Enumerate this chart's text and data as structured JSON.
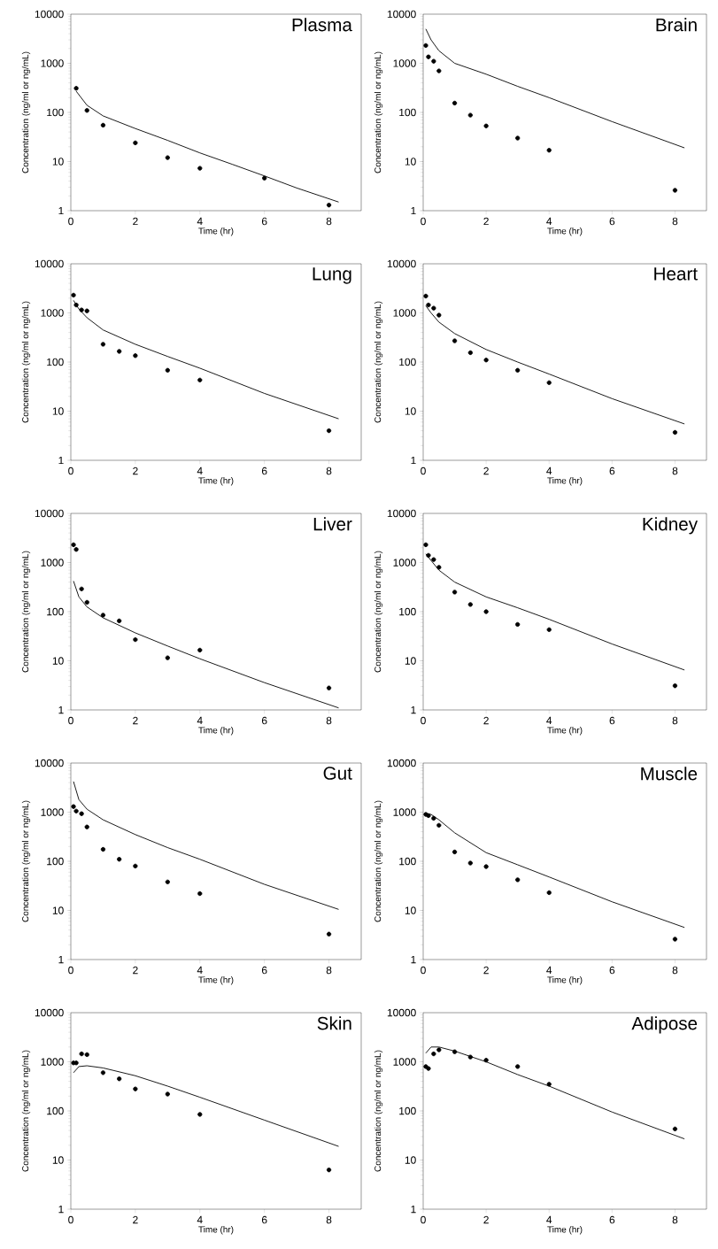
{
  "chart_data": [
    {
      "type": "scatter",
      "title": "Plasma",
      "xlabel": "Time (hr)",
      "ylabel": "Concentration (ng/ml or ng/mL)",
      "log": "y",
      "xlim": [
        0,
        9
      ],
      "ylim": [
        1,
        10000
      ],
      "xticks": [
        0,
        2,
        4,
        6,
        8
      ],
      "yticks": [
        1,
        10,
        100,
        1000,
        10000
      ],
      "series": [
        {
          "marker": "circle",
          "color": "#000000",
          "x": [
            0.167,
            0.5,
            1,
            2,
            3,
            4,
            6,
            8
          ],
          "values": [
            310,
            110,
            55,
            24,
            12,
            7.3,
            4.6,
            1.3
          ]
        },
        {
          "type": "line",
          "color": "#000000",
          "x": [
            0.167,
            0.5,
            1,
            2,
            3,
            4,
            5,
            6,
            7,
            8.3
          ],
          "values": [
            270,
            140,
            85,
            47,
            27,
            15,
            8.8,
            5.1,
            2.9,
            1.5
          ]
        }
      ]
    },
    {
      "type": "scatter",
      "title": "Brain",
      "xlabel": "Time (hr)",
      "ylabel": "Concentration (ng/ml or ng/mL)",
      "log": "y",
      "xlim": [
        0,
        9
      ],
      "ylim": [
        1,
        10000
      ],
      "xticks": [
        0,
        2,
        4,
        6,
        8
      ],
      "yticks": [
        1,
        10,
        100,
        1000,
        10000
      ],
      "series": [
        {
          "marker": "circle",
          "color": "#000000",
          "x": [
            0.083,
            0.167,
            0.333,
            0.5,
            1,
            1.5,
            2,
            3,
            4,
            8
          ],
          "values": [
            2300,
            1350,
            1100,
            700,
            155,
            88,
            53,
            30,
            17,
            2.6
          ]
        },
        {
          "type": "line",
          "color": "#000000",
          "x": [
            0.083,
            0.25,
            0.5,
            1,
            2,
            3,
            4,
            6,
            8.3
          ],
          "values": [
            5000,
            3000,
            1800,
            1000,
            600,
            340,
            200,
            65,
            19
          ]
        }
      ]
    },
    {
      "type": "scatter",
      "title": "Lung",
      "xlabel": "Time (hr)",
      "ylabel": "Concentration (ng/ml or ng/mL)",
      "log": "y",
      "xlim": [
        0,
        9
      ],
      "ylim": [
        1,
        10000
      ],
      "xticks": [
        0,
        2,
        4,
        6,
        8
      ],
      "yticks": [
        1,
        10,
        100,
        1000,
        10000
      ],
      "series": [
        {
          "marker": "circle",
          "color": "#000000",
          "x": [
            0.083,
            0.167,
            0.333,
            0.5,
            1,
            1.5,
            2,
            3,
            4,
            8
          ],
          "values": [
            2300,
            1450,
            1150,
            1100,
            230,
            165,
            135,
            68,
            43,
            4
          ]
        },
        {
          "type": "line",
          "color": "#000000",
          "x": [
            0.083,
            0.25,
            0.5,
            1,
            2,
            3,
            4,
            6,
            8.3
          ],
          "values": [
            1800,
            1200,
            800,
            450,
            230,
            130,
            75,
            23,
            7
          ]
        }
      ]
    },
    {
      "type": "scatter",
      "title": "Heart",
      "xlabel": "Time (hr)",
      "ylabel": "Concentration (ng/ml or ng/mL)",
      "log": "y",
      "xlim": [
        0,
        9
      ],
      "ylim": [
        1,
        10000
      ],
      "xticks": [
        0,
        2,
        4,
        6,
        8
      ],
      "yticks": [
        1,
        10,
        100,
        1000,
        10000
      ],
      "series": [
        {
          "marker": "circle",
          "color": "#000000",
          "x": [
            0.083,
            0.167,
            0.333,
            0.5,
            1,
            1.5,
            2,
            3,
            4,
            8
          ],
          "values": [
            2200,
            1450,
            1250,
            900,
            270,
            155,
            110,
            68,
            38,
            3.7
          ]
        },
        {
          "type": "line",
          "color": "#000000",
          "x": [
            0.083,
            0.25,
            0.5,
            1,
            2,
            3,
            4,
            6,
            8.3
          ],
          "values": [
            1400,
            1000,
            650,
            380,
            180,
            100,
            57,
            18,
            5.5
          ]
        }
      ]
    },
    {
      "type": "scatter",
      "title": "Liver",
      "xlabel": "Time (hr)",
      "ylabel": "Concentration (ng/ml or ng/mL)",
      "log": "y",
      "xlim": [
        0,
        9
      ],
      "ylim": [
        1,
        10000
      ],
      "xticks": [
        0,
        2,
        4,
        6,
        8
      ],
      "yticks": [
        1,
        10,
        100,
        1000,
        10000
      ],
      "series": [
        {
          "marker": "circle",
          "color": "#000000",
          "x": [
            0.083,
            0.167,
            0.333,
            0.5,
            1,
            1.5,
            2,
            3,
            4,
            8
          ],
          "values": [
            2300,
            1850,
            290,
            155,
            85,
            65,
            27,
            11.5,
            16.5,
            2.8
          ]
        },
        {
          "type": "line",
          "color": "#000000",
          "x": [
            0.083,
            0.25,
            0.5,
            1,
            2,
            3,
            4,
            6,
            8.3
          ],
          "values": [
            420,
            200,
            125,
            75,
            37,
            20,
            11,
            3.6,
            1.1
          ]
        }
      ]
    },
    {
      "type": "scatter",
      "title": "Kidney",
      "xlabel": "Time (hr)",
      "ylabel": "Concentration (ng/ml or ng/mL)",
      "log": "y",
      "xlim": [
        0,
        9
      ],
      "ylim": [
        1,
        10000
      ],
      "xticks": [
        0,
        2,
        4,
        6,
        8
      ],
      "yticks": [
        1,
        10,
        100,
        1000,
        10000
      ],
      "series": [
        {
          "marker": "circle",
          "color": "#000000",
          "x": [
            0.083,
            0.167,
            0.333,
            0.5,
            1,
            1.5,
            2,
            3,
            4,
            8
          ],
          "values": [
            2300,
            1400,
            1150,
            800,
            250,
            140,
            100,
            55,
            43,
            3.1
          ]
        },
        {
          "type": "line",
          "color": "#000000",
          "x": [
            0.083,
            0.25,
            0.5,
            1,
            2,
            3,
            4,
            6,
            8.3
          ],
          "values": [
            1500,
            1100,
            700,
            400,
            200,
            120,
            70,
            22,
            6.5
          ]
        }
      ]
    },
    {
      "type": "scatter",
      "title": "Gut",
      "xlabel": "Time (hr)",
      "ylabel": "Concentration (ng/ml or ng/mL)",
      "log": "y",
      "xlim": [
        0,
        9
      ],
      "ylim": [
        1,
        10000
      ],
      "xticks": [
        0,
        2,
        4,
        6,
        8
      ],
      "yticks": [
        1,
        10,
        100,
        1000,
        10000
      ],
      "series": [
        {
          "marker": "circle",
          "color": "#000000",
          "x": [
            0.083,
            0.167,
            0.333,
            0.5,
            1,
            1.5,
            2,
            3,
            4,
            8
          ],
          "values": [
            1300,
            1050,
            930,
            500,
            175,
            110,
            80,
            38,
            22,
            3.3
          ]
        },
        {
          "type": "line",
          "color": "#000000",
          "x": [
            0.083,
            0.25,
            0.5,
            1,
            2,
            3,
            4,
            6,
            8.3
          ],
          "values": [
            4200,
            1800,
            1150,
            700,
            350,
            190,
            110,
            34,
            10.5
          ]
        }
      ]
    },
    {
      "type": "scatter",
      "title": "Muscle",
      "xlabel": "Time (hr)",
      "ylabel": "Concentration (ng/ml or ng/mL)",
      "log": "y",
      "xlim": [
        0,
        9
      ],
      "ylim": [
        1,
        10000
      ],
      "xticks": [
        0,
        2,
        4,
        6,
        8
      ],
      "yticks": [
        1,
        10,
        100,
        1000,
        10000
      ],
      "series": [
        {
          "marker": "circle",
          "color": "#000000",
          "x": [
            0.083,
            0.167,
            0.333,
            0.5,
            1,
            1.5,
            2,
            3,
            4,
            8
          ],
          "values": [
            900,
            850,
            750,
            540,
            155,
            92,
            78,
            42,
            23,
            2.6
          ]
        },
        {
          "type": "line",
          "color": "#000000",
          "x": [
            0.083,
            0.25,
            0.5,
            1,
            2,
            3,
            4,
            6,
            8.3
          ],
          "values": [
            950,
            900,
            700,
            380,
            150,
            85,
            48,
            15,
            4.5
          ]
        }
      ]
    },
    {
      "type": "scatter",
      "title": "Skin",
      "xlabel": "Time (hr)",
      "ylabel": "Concentration (ng/ml or ng/mL)",
      "log": "y",
      "xlim": [
        0,
        9
      ],
      "ylim": [
        1,
        10000
      ],
      "xticks": [
        0,
        2,
        4,
        6,
        8
      ],
      "yticks": [
        1,
        10,
        100,
        1000,
        10000
      ],
      "series": [
        {
          "marker": "circle",
          "color": "#000000",
          "x": [
            0.083,
            0.167,
            0.333,
            0.5,
            1,
            1.5,
            2,
            3,
            4,
            8
          ],
          "values": [
            950,
            950,
            1450,
            1400,
            600,
            450,
            280,
            220,
            85,
            6.3
          ]
        },
        {
          "type": "line",
          "color": "#000000",
          "x": [
            0.083,
            0.25,
            0.5,
            1,
            2,
            3,
            4,
            6,
            8.3
          ],
          "values": [
            600,
            800,
            830,
            750,
            520,
            320,
            190,
            65,
            19
          ]
        }
      ]
    },
    {
      "type": "scatter",
      "title": "Adipose",
      "xlabel": "Time (hr)",
      "ylabel": "Concentration (ng/ml or ng/mL)",
      "log": "y",
      "xlim": [
        0,
        9
      ],
      "ylim": [
        1,
        10000
      ],
      "xticks": [
        0,
        2,
        4,
        6,
        8
      ],
      "yticks": [
        1,
        10,
        100,
        1000,
        10000
      ],
      "series": [
        {
          "marker": "circle",
          "color": "#000000",
          "x": [
            0.083,
            0.167,
            0.333,
            0.5,
            1,
            1.5,
            2,
            3,
            4,
            8
          ],
          "values": [
            800,
            730,
            1450,
            1750,
            1600,
            1250,
            1080,
            800,
            350,
            43
          ]
        },
        {
          "type": "line",
          "color": "#000000",
          "x": [
            0.083,
            0.25,
            0.5,
            1,
            2,
            3,
            4,
            6,
            8.3
          ],
          "values": [
            1500,
            2000,
            2000,
            1650,
            1000,
            550,
            320,
            95,
            27
          ]
        }
      ]
    }
  ]
}
